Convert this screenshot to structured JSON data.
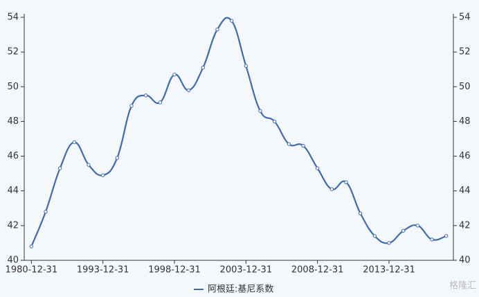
{
  "chart_data": {
    "type": "line",
    "categories": [
      "1980-12-31",
      null,
      null,
      null,
      null,
      "1993-12-31",
      null,
      null,
      null,
      null,
      "1998-12-31",
      null,
      null,
      null,
      null,
      "2003-12-31",
      null,
      null,
      null,
      null,
      "2008-12-31",
      null,
      null,
      null,
      null,
      "2013-12-31",
      null,
      null,
      null,
      null
    ],
    "series": [
      {
        "name": "阿根廷:基尼系数",
        "color": "#3d6bb3",
        "values": [
          40.8,
          42.8,
          45.3,
          46.8,
          45.5,
          44.9,
          45.9,
          48.9,
          49.5,
          49.1,
          50.7,
          49.8,
          51.1,
          53.3,
          53.8,
          51.2,
          48.6,
          48.0,
          46.7,
          46.6,
          45.3,
          44.1,
          44.5,
          42.7,
          41.4,
          41.0,
          41.7,
          42.0,
          41.2,
          41.4
        ]
      }
    ],
    "ylim": [
      40,
      54
    ],
    "yticks": [
      40,
      42,
      44,
      46,
      48,
      50,
      52,
      54
    ],
    "y2lim": [
      40,
      54
    ],
    "y2ticks": [
      40,
      42,
      44,
      46,
      48,
      50,
      52,
      54
    ],
    "smooth": true,
    "legend": "bottom",
    "watermark": "格隆汇"
  }
}
